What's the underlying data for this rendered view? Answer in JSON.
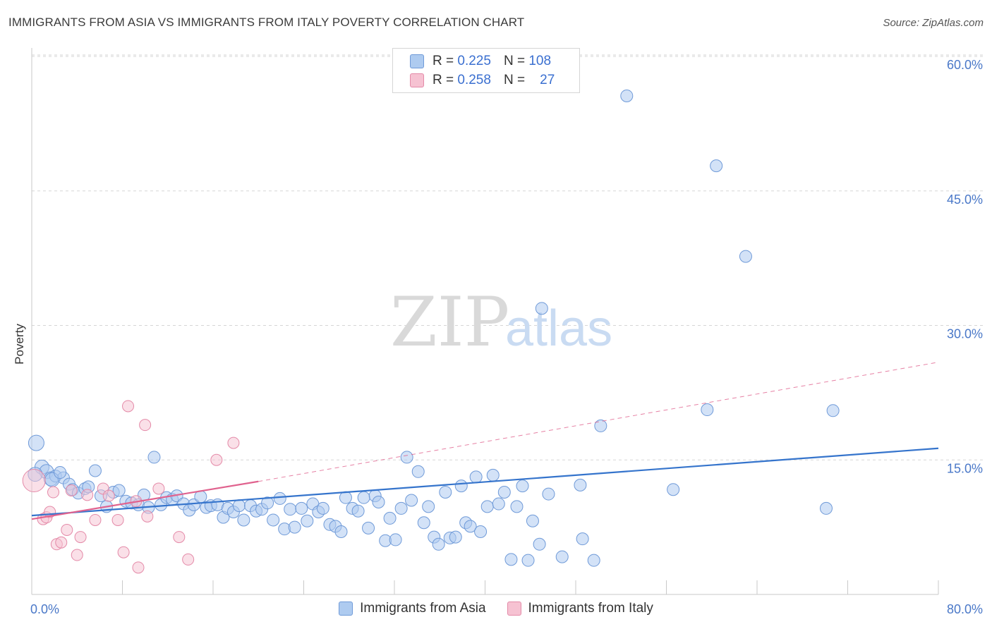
{
  "header": {
    "title": "IMMIGRANTS FROM ASIA VS IMMIGRANTS FROM ITALY POVERTY CORRELATION CHART",
    "source": "Source: ZipAtlas.com"
  },
  "watermark": {
    "zip": "ZIP",
    "atlas": "atlas"
  },
  "legend": {
    "rows": [
      {
        "r_label": "R =",
        "r_value": "0.225",
        "n_label": "N =",
        "n_value": "108"
      },
      {
        "r_label": "R =",
        "r_value": "0.258",
        "n_label": "N =",
        "n_value": "27"
      }
    ]
  },
  "bottom_legend": {
    "asia": "Immigrants from Asia",
    "italy": "Immigrants from Italy"
  },
  "colors": {
    "asia_fill": "#aecbf0",
    "asia_stroke": "#6f9ad8",
    "asia_line": "#3574cc",
    "italy_fill": "#f6c2d2",
    "italy_stroke": "#e48aa8",
    "italy_line": "#e0628e",
    "grid": "#d6d6d6"
  },
  "chart_data": {
    "type": "scatter",
    "title": "IMMIGRANTS FROM ASIA VS IMMIGRANTS FROM ITALY POVERTY CORRELATION CHART",
    "xlabel": "",
    "ylabel": "Poverty",
    "xlim": [
      0,
      80
    ],
    "ylim": [
      0,
      60
    ],
    "x_tick_labels": [
      "0.0%",
      "80.0%"
    ],
    "y_ticks": [
      15,
      30,
      45,
      60
    ],
    "y_tick_labels": [
      "15.0%",
      "30.0%",
      "45.0%",
      "60.0%"
    ],
    "grid": true,
    "series": [
      {
        "name": "Immigrants from Asia",
        "r": 0.225,
        "n": 108,
        "trend": {
          "x": [
            0,
            80
          ],
          "y": [
            8.8,
            16.3
          ]
        },
        "points": [
          [
            0.4,
            16.9
          ],
          [
            0.9,
            14.2
          ],
          [
            1.3,
            13.7
          ],
          [
            1.7,
            12.9
          ],
          [
            2.1,
            13.2
          ],
          [
            2.8,
            13.0
          ],
          [
            3.3,
            12.3
          ],
          [
            3.6,
            11.7
          ],
          [
            4.1,
            11.3
          ],
          [
            4.7,
            11.8
          ],
          [
            5.0,
            12.0
          ],
          [
            5.6,
            13.8
          ],
          [
            6.1,
            11.0
          ],
          [
            6.6,
            9.8
          ],
          [
            7.2,
            11.4
          ],
          [
            7.7,
            11.6
          ],
          [
            8.3,
            10.4
          ],
          [
            8.8,
            10.2
          ],
          [
            9.4,
            10.0
          ],
          [
            9.9,
            11.1
          ],
          [
            10.3,
            9.7
          ],
          [
            10.8,
            15.3
          ],
          [
            11.4,
            10.0
          ],
          [
            11.9,
            10.8
          ],
          [
            12.4,
            10.6
          ],
          [
            12.8,
            11.0
          ],
          [
            13.4,
            10.1
          ],
          [
            13.9,
            9.4
          ],
          [
            14.3,
            10.0
          ],
          [
            14.9,
            10.9
          ],
          [
            15.4,
            9.7
          ],
          [
            15.8,
            9.9
          ],
          [
            16.4,
            10.0
          ],
          [
            16.9,
            8.6
          ],
          [
            17.3,
            9.6
          ],
          [
            17.8,
            9.2
          ],
          [
            18.3,
            9.9
          ],
          [
            18.7,
            8.3
          ],
          [
            19.3,
            9.9
          ],
          [
            19.8,
            9.3
          ],
          [
            20.3,
            9.5
          ],
          [
            20.8,
            10.2
          ],
          [
            21.3,
            8.3
          ],
          [
            21.9,
            10.7
          ],
          [
            22.3,
            7.3
          ],
          [
            22.8,
            9.5
          ],
          [
            23.2,
            7.5
          ],
          [
            23.8,
            9.6
          ],
          [
            24.3,
            8.2
          ],
          [
            24.8,
            10.1
          ],
          [
            25.3,
            9.2
          ],
          [
            25.7,
            9.6
          ],
          [
            26.3,
            7.8
          ],
          [
            26.8,
            7.6
          ],
          [
            27.3,
            7.0
          ],
          [
            27.7,
            10.8
          ],
          [
            28.3,
            9.6
          ],
          [
            28.8,
            9.3
          ],
          [
            29.3,
            10.8
          ],
          [
            29.7,
            7.4
          ],
          [
            30.3,
            11.0
          ],
          [
            30.6,
            10.3
          ],
          [
            31.2,
            6.0
          ],
          [
            31.6,
            8.5
          ],
          [
            32.1,
            6.1
          ],
          [
            32.6,
            9.6
          ],
          [
            33.1,
            15.3
          ],
          [
            33.5,
            10.5
          ],
          [
            34.1,
            13.7
          ],
          [
            34.6,
            8.0
          ],
          [
            35.0,
            9.8
          ],
          [
            35.5,
            6.4
          ],
          [
            35.9,
            5.6
          ],
          [
            36.5,
            11.4
          ],
          [
            36.9,
            6.3
          ],
          [
            37.4,
            6.4
          ],
          [
            37.9,
            12.1
          ],
          [
            38.3,
            8.0
          ],
          [
            38.7,
            7.6
          ],
          [
            39.2,
            13.1
          ],
          [
            39.6,
            7.0
          ],
          [
            40.2,
            9.8
          ],
          [
            40.7,
            13.3
          ],
          [
            41.2,
            10.1
          ],
          [
            41.7,
            11.4
          ],
          [
            42.3,
            3.9
          ],
          [
            42.8,
            9.8
          ],
          [
            43.3,
            12.1
          ],
          [
            43.8,
            3.8
          ],
          [
            44.2,
            8.2
          ],
          [
            44.8,
            5.6
          ],
          [
            45.0,
            31.9
          ],
          [
            45.6,
            11.2
          ],
          [
            46.8,
            4.2
          ],
          [
            48.4,
            12.2
          ],
          [
            48.6,
            6.2
          ],
          [
            49.6,
            3.8
          ],
          [
            50.2,
            18.8
          ],
          [
            52.5,
            55.6
          ],
          [
            56.6,
            11.7
          ],
          [
            59.6,
            20.6
          ],
          [
            60.4,
            47.8
          ],
          [
            63.0,
            37.7
          ],
          [
            70.1,
            9.6
          ],
          [
            70.7,
            20.5
          ],
          [
            0.3,
            13.4
          ],
          [
            1.8,
            12.8
          ],
          [
            2.5,
            13.6
          ]
        ]
      },
      {
        "name": "Immigrants from Italy",
        "r": 0.258,
        "n": 27,
        "trend": {
          "x": [
            0,
            20
          ],
          "y": [
            8.4,
            12.6
          ],
          "dashed_extension": {
            "x": [
              20,
              80
            ],
            "y": [
              12.6,
              25.9
            ]
          }
        },
        "points": [
          [
            0.2,
            12.7
          ],
          [
            1.0,
            8.4
          ],
          [
            1.3,
            8.6
          ],
          [
            1.6,
            9.2
          ],
          [
            1.9,
            11.4
          ],
          [
            2.2,
            5.6
          ],
          [
            2.6,
            5.8
          ],
          [
            3.1,
            7.2
          ],
          [
            3.5,
            11.6
          ],
          [
            4.0,
            4.4
          ],
          [
            4.3,
            6.4
          ],
          [
            4.9,
            11.1
          ],
          [
            5.6,
            8.3
          ],
          [
            6.3,
            11.8
          ],
          [
            6.8,
            11.0
          ],
          [
            7.6,
            8.3
          ],
          [
            8.1,
            4.7
          ],
          [
            8.5,
            21.0
          ],
          [
            9.2,
            10.4
          ],
          [
            9.4,
            3.0
          ],
          [
            10.0,
            18.9
          ],
          [
            10.2,
            8.7
          ],
          [
            11.2,
            11.8
          ],
          [
            13.0,
            6.4
          ],
          [
            13.8,
            3.9
          ],
          [
            16.3,
            15.0
          ],
          [
            17.8,
            16.9
          ]
        ]
      }
    ]
  }
}
